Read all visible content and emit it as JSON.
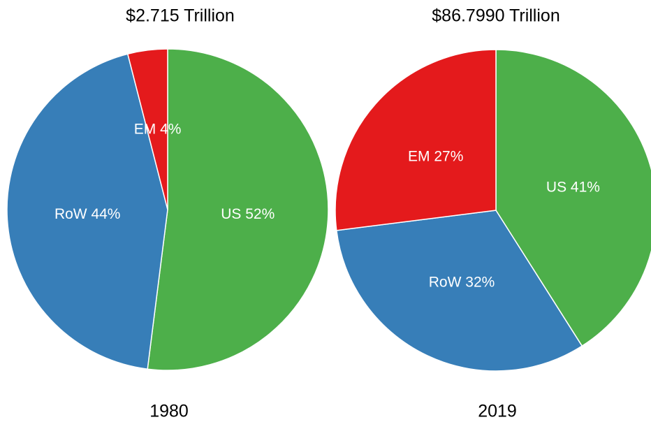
{
  "chart_data": [
    {
      "type": "pie",
      "title": "$2.715 Trillion",
      "xlabel": "1980",
      "categories": [
        "US",
        "RoW",
        "EM"
      ],
      "values": [
        52,
        44,
        4
      ],
      "value_labels": [
        "US 52%",
        "RoW 44%",
        "EM 4%"
      ],
      "colors": [
        "#4daf4a",
        "#377eb8",
        "#e41a1c"
      ]
    },
    {
      "type": "pie",
      "title": "$86.7990 Trillion",
      "xlabel": "2019",
      "categories": [
        "US",
        "RoW",
        "EM"
      ],
      "values": [
        41,
        32,
        27
      ],
      "value_labels": [
        "US 41%",
        "RoW 32%",
        "EM 27%"
      ],
      "colors": [
        "#4daf4a",
        "#377eb8",
        "#e41a1c"
      ]
    }
  ]
}
